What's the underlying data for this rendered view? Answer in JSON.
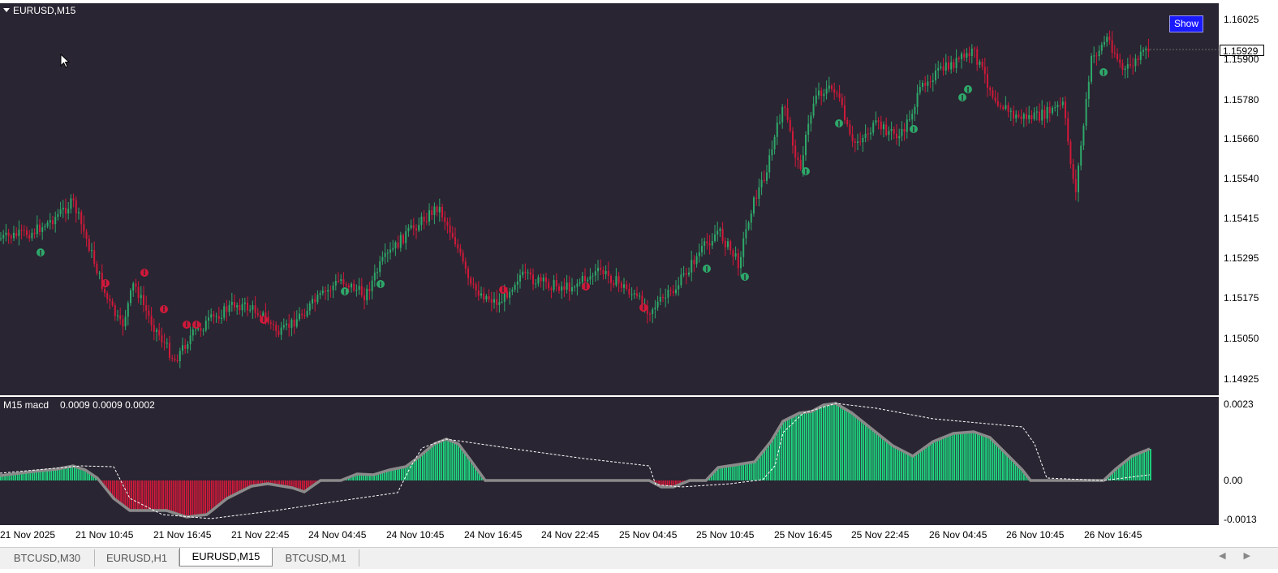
{
  "chart": {
    "symbol_title": "EURUSD,M15",
    "show_button": "Show",
    "current_price": "1.15929",
    "price_axis": [
      "1.16025",
      "1.15900",
      "1.15780",
      "1.15660",
      "1.15540",
      "1.15415",
      "1.15295",
      "1.15175",
      "1.15050",
      "1.14925"
    ],
    "time_axis": [
      "21 Nov 2025",
      "21 Nov 10:45",
      "21 Nov 16:45",
      "21 Nov 22:45",
      "24 Nov 04:45",
      "24 Nov 10:45",
      "24 Nov 16:45",
      "24 Nov 22:45",
      "25 Nov 04:45",
      "25 Nov 10:45",
      "25 Nov 16:45",
      "25 Nov 22:45",
      "26 Nov 04:45",
      "26 Nov 10:45",
      "26 Nov 16:45"
    ]
  },
  "macd": {
    "title": "M15 macd",
    "values": "0.0009 0.0009 0.0002",
    "axis": [
      "0.0023",
      "0.00",
      "-0.0013"
    ]
  },
  "tabs": [
    "BTCUSD,M30",
    "EURUSD,H1",
    "EURUSD,M15",
    "BTCUSD,M1"
  ],
  "active_tab": "EURUSD,M15",
  "colors": {
    "background": "#2a2532",
    "bull": "#2ea86a",
    "bear": "#d0193a",
    "histogram_pos": "#1fd982",
    "histogram_neg": "#d0193a",
    "macd_line": "#8a8a8a",
    "show_button": "#1a1aff"
  },
  "icons": [
    "dropdown-triangle-icon",
    "mouse-pointer-icon",
    "scroll-left-icon",
    "scroll-right-icon",
    "buy-signal-icon",
    "sell-signal-icon"
  ]
}
